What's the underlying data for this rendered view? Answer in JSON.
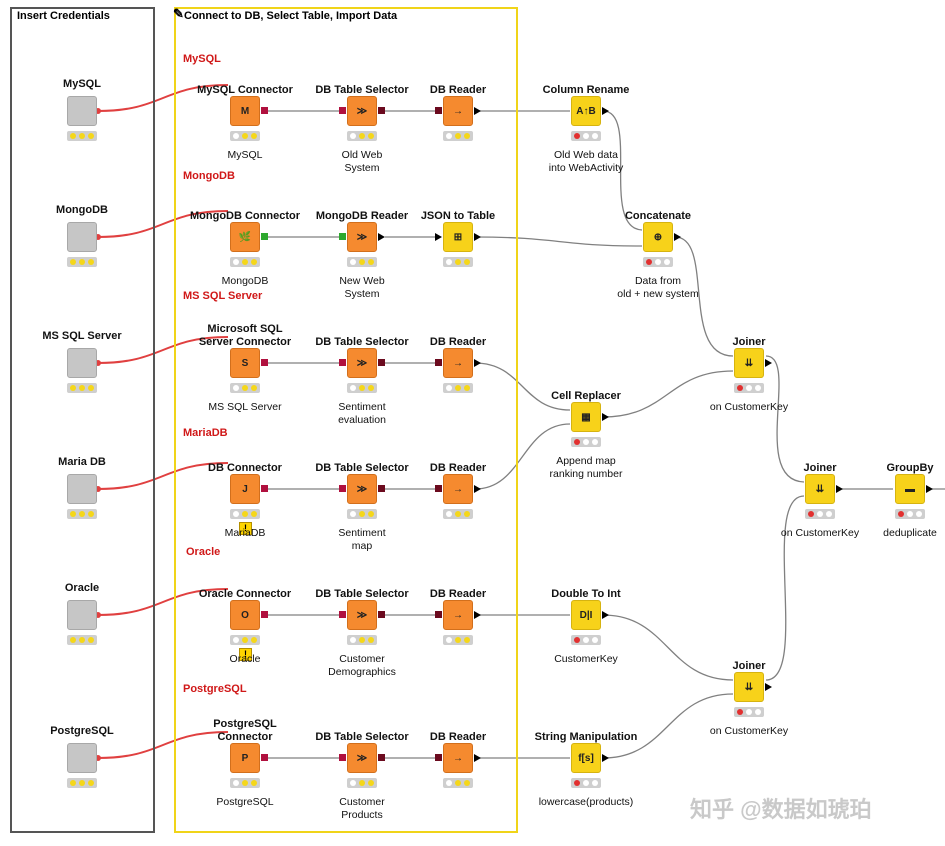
{
  "boxes": {
    "credentials_title": "Insert Credentials",
    "import_title": "Connect to DB, Select Table, Import Data"
  },
  "sections": {
    "mysql": "MySQL",
    "mongodb": "MongoDB",
    "mssql": "MS SQL Server",
    "mariadb": "MariaDB",
    "oracle": "Oracle",
    "postgresql": "PostgreSQL"
  },
  "credentials": [
    "MySQL",
    "MongoDB",
    "MS SQL Server",
    "Maria DB",
    "Oracle",
    "PostgreSQL"
  ],
  "rows": [
    {
      "connector": {
        "title": "MySQL Connector",
        "caption": "MySQL",
        "icon": "M"
      },
      "selector": {
        "title": "DB Table Selector",
        "caption": "Old Web\nSystem"
      },
      "reader": {
        "title": "DB Reader",
        "caption": ""
      }
    },
    {
      "connector": {
        "title": "MongoDB Connector",
        "caption": "MongoDB",
        "icon": "leaf"
      },
      "selector": {
        "title": "MongoDB Reader",
        "caption": "New Web\nSystem"
      },
      "reader": {
        "title": "JSON to Table",
        "caption": ""
      }
    },
    {
      "connector": {
        "title": "Microsoft SQL\nServer Connector",
        "caption": "MS SQL Server",
        "icon": "S"
      },
      "selector": {
        "title": "DB Table Selector",
        "caption": "Sentiment\nevaluation"
      },
      "reader": {
        "title": "DB Reader",
        "caption": ""
      }
    },
    {
      "connector": {
        "title": "DB Connector",
        "caption": "MariaDB",
        "icon": "J"
      },
      "selector": {
        "title": "DB Table Selector",
        "caption": "Sentiment\nmap"
      },
      "reader": {
        "title": "DB Reader",
        "caption": ""
      }
    },
    {
      "connector": {
        "title": "Oracle Connector",
        "caption": "Oracle",
        "icon": "O"
      },
      "selector": {
        "title": "DB Table Selector",
        "caption": "Customer\nDemographics"
      },
      "reader": {
        "title": "DB Reader",
        "caption": ""
      }
    },
    {
      "connector": {
        "title": "PostgreSQL\nConnector",
        "caption": "PostgreSQL",
        "icon": "P"
      },
      "selector": {
        "title": "DB Table Selector",
        "caption": "Customer\nProducts"
      },
      "reader": {
        "title": "DB Reader",
        "caption": ""
      }
    }
  ],
  "transforms": {
    "column_rename": {
      "title": "Column Rename",
      "caption": "Old Web data\ninto WebActivity"
    },
    "concatenate": {
      "title": "Concatenate",
      "caption": "Data from\nold + new system"
    },
    "cell_replacer": {
      "title": "Cell Replacer",
      "caption": "Append map\nranking number"
    },
    "double_to_int": {
      "title": "Double To Int",
      "caption": "CustomerKey"
    },
    "string_manipulation": {
      "title": "String Manipulation",
      "caption": "lowercase(products)"
    },
    "joiner1": {
      "title": "Joiner",
      "caption": "on CustomerKey"
    },
    "joiner2": {
      "title": "Joiner",
      "caption": "on CustomerKey"
    },
    "joiner3": {
      "title": "Joiner",
      "caption": "on CustomerKey"
    },
    "groupby": {
      "title": "GroupBy",
      "caption": "deduplicate"
    }
  },
  "watermark": "知乎 @数据如琥珀",
  "colors": {
    "db_node": "#f58a2f",
    "manip_node": "#f7d21a",
    "cred_node": "#c6c6c6",
    "credentials_border": "#555555",
    "import_border": "#f0d419",
    "wire_credential": "#e04040",
    "wire_data": "#808080"
  }
}
